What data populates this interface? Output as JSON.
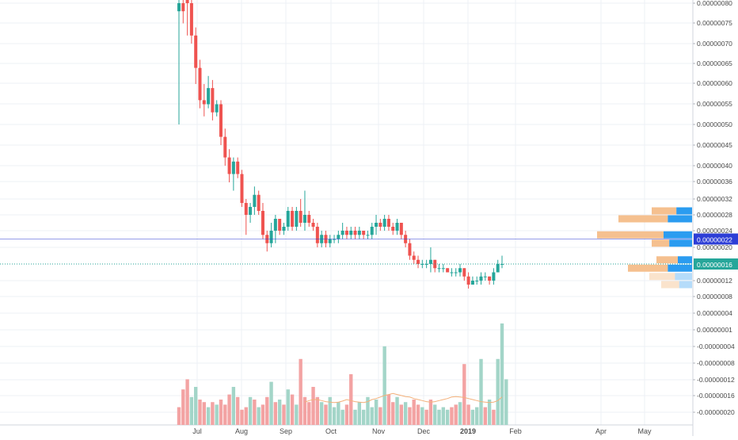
{
  "chart_data": {
    "type": "candlestick",
    "price_axis": {
      "ticks": [
        {
          "value": 8e-07,
          "label": "0.00000080"
        },
        {
          "value": 7.5e-07,
          "label": "0.00000075"
        },
        {
          "value": 7e-07,
          "label": "0.00000070"
        },
        {
          "value": 6.5e-07,
          "label": "0.00000065"
        },
        {
          "value": 6e-07,
          "label": "0.00000060"
        },
        {
          "value": 5.5e-07,
          "label": "0.00000055"
        },
        {
          "value": 5e-07,
          "label": "0.00000050"
        },
        {
          "value": 4.5e-07,
          "label": "0.00000045"
        },
        {
          "value": 4e-07,
          "label": "0.00000040"
        },
        {
          "value": 3.6e-07,
          "label": "0.00000036"
        },
        {
          "value": 3.2e-07,
          "label": "0.00000032"
        },
        {
          "value": 2.8e-07,
          "label": "0.00000028"
        },
        {
          "value": 2.4e-07,
          "label": "0.00000024"
        },
        {
          "value": 2e-07,
          "label": "0.00000020"
        },
        {
          "value": 1.2e-07,
          "label": "0.00000012"
        },
        {
          "value": 8e-08,
          "label": "0.00000008"
        },
        {
          "value": 4e-08,
          "label": "0.00000004"
        },
        {
          "value": 1e-08,
          "label": "0.00000001"
        },
        {
          "value": -4e-08,
          "label": "-0.00000004"
        },
        {
          "value": -8e-08,
          "label": "-0.00000008"
        },
        {
          "value": -1.2e-07,
          "label": "-0.00000012"
        },
        {
          "value": -1.6e-07,
          "label": "-0.00000016"
        },
        {
          "value": -2e-07,
          "label": "-0.00000020"
        }
      ]
    },
    "time_axis": [
      "Jul",
      "Aug",
      "Sep",
      "Oct",
      "Nov",
      "Dec",
      "2019",
      "Feb",
      "Apr",
      "May"
    ],
    "candles": [
      {
        "o": 7.8e-07,
        "h": 8.2e-07,
        "l": 5e-07,
        "c": 8e-07
      },
      {
        "o": 8e-07,
        "h": 8.2e-07,
        "l": 7.5e-07,
        "c": 7.8e-07
      },
      {
        "o": 8.2e-07,
        "h": 8.3e-07,
        "l": 7.2e-07,
        "c": 8e-07
      },
      {
        "o": 8e-07,
        "h": 8.2e-07,
        "l": 7e-07,
        "c": 7.2e-07
      },
      {
        "o": 7.2e-07,
        "h": 7.4e-07,
        "l": 6e-07,
        "c": 6.4e-07
      },
      {
        "o": 6.4e-07,
        "h": 6.6e-07,
        "l": 5.4e-07,
        "c": 5.6e-07
      },
      {
        "o": 5.6e-07,
        "h": 6e-07,
        "l": 5.2e-07,
        "c": 5.5e-07
      },
      {
        "o": 5.5e-07,
        "h": 6.2e-07,
        "l": 5.4e-07,
        "c": 5.9e-07
      },
      {
        "o": 5.9e-07,
        "h": 6.1e-07,
        "l": 5.1e-07,
        "c": 5.3e-07
      },
      {
        "o": 5.3e-07,
        "h": 5.6e-07,
        "l": 5.2e-07,
        "c": 5.5e-07
      },
      {
        "o": 5.5e-07,
        "h": 5.6e-07,
        "l": 4.5e-07,
        "c": 4.7e-07
      },
      {
        "o": 4.7e-07,
        "h": 4.9e-07,
        "l": 4e-07,
        "c": 4.2e-07
      },
      {
        "o": 4.2e-07,
        "h": 4.4e-07,
        "l": 3.6e-07,
        "c": 3.8e-07
      },
      {
        "o": 3.8e-07,
        "h": 4.2e-07,
        "l": 3.4e-07,
        "c": 4.1e-07
      },
      {
        "o": 4.1e-07,
        "h": 4.2e-07,
        "l": 3.7e-07,
        "c": 3.8e-07
      },
      {
        "o": 3.8e-07,
        "h": 3.9e-07,
        "l": 3e-07,
        "c": 3.1e-07
      },
      {
        "o": 3.1e-07,
        "h": 3.2e-07,
        "l": 2.3e-07,
        "c": 2.8e-07
      },
      {
        "o": 2.8e-07,
        "h": 3.1e-07,
        "l": 2.6e-07,
        "c": 3e-07
      },
      {
        "o": 3e-07,
        "h": 3.5e-07,
        "l": 2.8e-07,
        "c": 3.3e-07
      },
      {
        "o": 3.3e-07,
        "h": 3.4e-07,
        "l": 2.8e-07,
        "c": 2.9e-07
      },
      {
        "o": 2.9e-07,
        "h": 3.1e-07,
        "l": 2.2e-07,
        "c": 2.3e-07
      },
      {
        "o": 2.3e-07,
        "h": 2.4e-07,
        "l": 1.9e-07,
        "c": 2.1e-07
      },
      {
        "o": 2.1e-07,
        "h": 2.6e-07,
        "l": 2e-07,
        "c": 2.4e-07
      },
      {
        "o": 2.4e-07,
        "h": 2.8e-07,
        "l": 2.1e-07,
        "c": 2.7e-07
      },
      {
        "o": 2.7e-07,
        "h": 2.7e-07,
        "l": 2.3e-07,
        "c": 2.4e-07
      },
      {
        "o": 2.4e-07,
        "h": 2.6e-07,
        "l": 2.3e-07,
        "c": 2.5e-07
      },
      {
        "o": 2.5e-07,
        "h": 3e-07,
        "l": 2.4e-07,
        "c": 2.9e-07
      },
      {
        "o": 2.9e-07,
        "h": 3e-07,
        "l": 2.4e-07,
        "c": 2.5e-07
      },
      {
        "o": 2.5e-07,
        "h": 3e-07,
        "l": 2.4e-07,
        "c": 2.9e-07
      },
      {
        "o": 2.9e-07,
        "h": 3.2e-07,
        "l": 2.5e-07,
        "c": 2.6e-07
      },
      {
        "o": 2.6e-07,
        "h": 3.4e-07,
        "l": 2.4e-07,
        "c": 2.8e-07
      },
      {
        "o": 2.8e-07,
        "h": 2.9e-07,
        "l": 2.5e-07,
        "c": 2.6e-07
      },
      {
        "o": 2.6e-07,
        "h": 2.7e-07,
        "l": 2.4e-07,
        "c": 2.5e-07
      },
      {
        "o": 2.5e-07,
        "h": 2.6e-07,
        "l": 2e-07,
        "c": 2.1e-07
      },
      {
        "o": 2.1e-07,
        "h": 2.4e-07,
        "l": 2e-07,
        "c": 2.3e-07
      },
      {
        "o": 2.3e-07,
        "h": 2.4e-07,
        "l": 2e-07,
        "c": 2.1e-07
      },
      {
        "o": 2.1e-07,
        "h": 2.3e-07,
        "l": 2e-07,
        "c": 2.2e-07
      },
      {
        "o": 2.2e-07,
        "h": 2.3e-07,
        "l": 2.1e-07,
        "c": 2.2e-07
      },
      {
        "o": 2.2e-07,
        "h": 2.4e-07,
        "l": 2.1e-07,
        "c": 2.3e-07
      },
      {
        "o": 2.3e-07,
        "h": 2.6e-07,
        "l": 2.2e-07,
        "c": 2.4e-07
      },
      {
        "o": 2.4e-07,
        "h": 2.5e-07,
        "l": 2.2e-07,
        "c": 2.3e-07
      },
      {
        "o": 2.3e-07,
        "h": 2.5e-07,
        "l": 2.2e-07,
        "c": 2.4e-07
      },
      {
        "o": 2.4e-07,
        "h": 2.5e-07,
        "l": 2.2e-07,
        "c": 2.3e-07
      },
      {
        "o": 2.3e-07,
        "h": 2.5e-07,
        "l": 2.2e-07,
        "c": 2.4e-07
      },
      {
        "o": 2.4e-07,
        "h": 2.4e-07,
        "l": 2.2e-07,
        "c": 2.3e-07
      },
      {
        "o": 2.3e-07,
        "h": 2.4e-07,
        "l": 2.2e-07,
        "c": 2.3e-07
      },
      {
        "o": 2.3e-07,
        "h": 2.6e-07,
        "l": 2.2e-07,
        "c": 2.5e-07
      },
      {
        "o": 2.5e-07,
        "h": 2.8e-07,
        "l": 2.3e-07,
        "c": 2.6e-07
      },
      {
        "o": 2.6e-07,
        "h": 2.7e-07,
        "l": 2.4e-07,
        "c": 2.5e-07
      },
      {
        "o": 2.5e-07,
        "h": 2.8e-07,
        "l": 2.4e-07,
        "c": 2.7e-07
      },
      {
        "o": 2.7e-07,
        "h": 2.8e-07,
        "l": 2.4e-07,
        "c": 2.5e-07
      },
      {
        "o": 2.5e-07,
        "h": 2.6e-07,
        "l": 2.3e-07,
        "c": 2.4e-07
      },
      {
        "o": 2.4e-07,
        "h": 2.7e-07,
        "l": 2.3e-07,
        "c": 2.6e-07
      },
      {
        "o": 2.6e-07,
        "h": 2.6e-07,
        "l": 2.2e-07,
        "c": 2.3e-07
      },
      {
        "o": 2.3e-07,
        "h": 2.4e-07,
        "l": 2e-07,
        "c": 2.1e-07
      },
      {
        "o": 2.1e-07,
        "h": 2.2e-07,
        "l": 1.7e-07,
        "c": 1.8e-07
      },
      {
        "o": 1.8e-07,
        "h": 1.9e-07,
        "l": 1.6e-07,
        "c": 1.7e-07
      },
      {
        "o": 1.7e-07,
        "h": 1.8e-07,
        "l": 1.5e-07,
        "c": 1.6e-07
      },
      {
        "o": 1.6e-07,
        "h": 1.7e-07,
        "l": 1.5e-07,
        "c": 1.6e-07
      },
      {
        "o": 1.6e-07,
        "h": 1.7e-07,
        "l": 1.5e-07,
        "c": 1.6e-07
      },
      {
        "o": 1.6e-07,
        "h": 2e-07,
        "l": 1.4e-07,
        "c": 1.7e-07
      },
      {
        "o": 1.7e-07,
        "h": 1.7e-07,
        "l": 1.4e-07,
        "c": 1.5e-07
      },
      {
        "o": 1.5e-07,
        "h": 1.6e-07,
        "l": 1.4e-07,
        "c": 1.5e-07
      },
      {
        "o": 1.5e-07,
        "h": 1.6e-07,
        "l": 1.4e-07,
        "c": 1.5e-07
      },
      {
        "o": 1.5e-07,
        "h": 1.5e-07,
        "l": 1.4e-07,
        "c": 1.4e-07
      },
      {
        "o": 1.4e-07,
        "h": 1.5e-07,
        "l": 1.3e-07,
        "c": 1.4e-07
      },
      {
        "o": 1.4e-07,
        "h": 1.5e-07,
        "l": 1.3e-07,
        "c": 1.4e-07
      },
      {
        "o": 1.4e-07,
        "h": 1.6e-07,
        "l": 1.3e-07,
        "c": 1.5e-07
      },
      {
        "o": 1.5e-07,
        "h": 1.5e-07,
        "l": 1.2e-07,
        "c": 1.3e-07
      },
      {
        "o": 1.3e-07,
        "h": 1.4e-07,
        "l": 1e-07,
        "c": 1.1e-07
      },
      {
        "o": 1.1e-07,
        "h": 1.3e-07,
        "l": 1.1e-07,
        "c": 1.2e-07
      },
      {
        "o": 1.2e-07,
        "h": 1.3e-07,
        "l": 1.1e-07,
        "c": 1.2e-07
      },
      {
        "o": 1.2e-07,
        "h": 1.4e-07,
        "l": 1.1e-07,
        "c": 1.3e-07
      },
      {
        "o": 1.3e-07,
        "h": 1.4e-07,
        "l": 1.2e-07,
        "c": 1.3e-07
      },
      {
        "o": 1.3e-07,
        "h": 1.3e-07,
        "l": 1.1e-07,
        "c": 1.2e-07
      },
      {
        "o": 1.2e-07,
        "h": 1.5e-07,
        "l": 1.1e-07,
        "c": 1.4e-07
      },
      {
        "o": 1.4e-07,
        "h": 1.7e-07,
        "l": 1.4e-07,
        "c": 1.6e-07
      },
      {
        "o": 1.6e-07,
        "h": 1.8e-07,
        "l": 1.5e-07,
        "c": 1.6e-07
      }
    ],
    "volume": [
      {
        "v": 0.35,
        "up": false
      },
      {
        "v": 0.7,
        "up": false
      },
      {
        "v": 0.9,
        "up": false
      },
      {
        "v": 0.55,
        "up": true
      },
      {
        "v": 0.75,
        "up": true
      },
      {
        "v": 0.5,
        "up": false
      },
      {
        "v": 0.45,
        "up": false
      },
      {
        "v": 0.35,
        "up": true
      },
      {
        "v": 0.45,
        "up": false
      },
      {
        "v": 0.4,
        "up": true
      },
      {
        "v": 0.5,
        "up": false
      },
      {
        "v": 0.4,
        "up": false
      },
      {
        "v": 0.6,
        "up": false
      },
      {
        "v": 0.75,
        "up": true
      },
      {
        "v": 0.55,
        "up": false
      },
      {
        "v": 0.3,
        "up": false
      },
      {
        "v": 0.35,
        "up": false
      },
      {
        "v": 0.55,
        "up": true
      },
      {
        "v": 0.5,
        "up": false
      },
      {
        "v": 0.35,
        "up": true
      },
      {
        "v": 0.4,
        "up": false
      },
      {
        "v": 0.55,
        "up": false
      },
      {
        "v": 0.85,
        "up": true
      },
      {
        "v": 0.45,
        "up": false
      },
      {
        "v": 0.5,
        "up": true
      },
      {
        "v": 0.4,
        "up": false
      },
      {
        "v": 0.7,
        "up": true
      },
      {
        "v": 0.6,
        "up": false
      },
      {
        "v": 0.4,
        "up": true
      },
      {
        "v": 1.3,
        "up": false
      },
      {
        "v": 0.55,
        "up": false
      },
      {
        "v": 0.45,
        "up": false
      },
      {
        "v": 0.75,
        "up": false
      },
      {
        "v": 0.55,
        "up": false
      },
      {
        "v": 0.45,
        "up": true
      },
      {
        "v": 0.4,
        "up": false
      },
      {
        "v": 0.55,
        "up": true
      },
      {
        "v": 0.35,
        "up": true
      },
      {
        "v": 0.45,
        "up": true
      },
      {
        "v": 0.3,
        "up": true
      },
      {
        "v": 0.4,
        "up": false
      },
      {
        "v": 1.0,
        "up": false
      },
      {
        "v": 0.3,
        "up": true
      },
      {
        "v": 0.45,
        "up": true
      },
      {
        "v": 0.3,
        "up": true
      },
      {
        "v": 0.55,
        "up": true
      },
      {
        "v": 0.35,
        "up": true
      },
      {
        "v": 0.5,
        "up": true
      },
      {
        "v": 0.35,
        "up": false
      },
      {
        "v": 1.55,
        "up": true
      },
      {
        "v": 0.6,
        "up": false
      },
      {
        "v": 0.45,
        "up": false
      },
      {
        "v": 0.55,
        "up": true
      },
      {
        "v": 0.4,
        "up": false
      },
      {
        "v": 0.45,
        "up": true
      },
      {
        "v": 0.35,
        "up": false
      },
      {
        "v": 0.5,
        "up": false
      },
      {
        "v": 0.4,
        "up": false
      },
      {
        "v": 0.35,
        "up": true
      },
      {
        "v": 0.3,
        "up": false
      },
      {
        "v": 0.5,
        "up": false
      },
      {
        "v": 0.4,
        "up": true
      },
      {
        "v": 0.3,
        "up": true
      },
      {
        "v": 0.35,
        "up": true
      },
      {
        "v": 0.3,
        "up": true
      },
      {
        "v": 0.35,
        "up": false
      },
      {
        "v": 0.4,
        "up": false
      },
      {
        "v": 0.45,
        "up": true
      },
      {
        "v": 1.2,
        "up": false
      },
      {
        "v": 0.4,
        "up": false
      },
      {
        "v": 0.3,
        "up": true
      },
      {
        "v": 0.35,
        "up": true
      },
      {
        "v": 1.3,
        "up": true
      },
      {
        "v": 0.35,
        "up": false
      },
      {
        "v": 0.5,
        "up": true
      },
      {
        "v": 0.3,
        "up": false
      },
      {
        "v": 1.3,
        "up": true
      },
      {
        "v": 2.0,
        "up": true
      },
      {
        "v": 0.9,
        "up": true
      }
    ],
    "volume_ma": [
      0.45,
      0.48,
      0.5,
      0.5,
      0.48,
      0.46,
      0.45,
      0.44,
      0.45,
      0.47,
      0.5,
      0.48,
      0.46,
      0.45,
      0.44,
      0.46,
      0.5,
      0.52,
      0.55,
      0.58,
      0.6,
      0.62,
      0.6,
      0.58,
      0.56,
      0.55,
      0.52,
      0.5,
      0.48,
      0.46,
      0.45,
      0.46,
      0.48,
      0.5,
      0.52,
      0.55,
      0.56,
      0.55,
      0.54,
      0.52,
      0.5,
      0.48,
      0.46,
      0.45,
      0.44,
      0.45,
      0.48,
      0.55
    ],
    "volume_profile": [
      {
        "price": 2.9e-07,
        "down": 0.3,
        "up": 0.55
      },
      {
        "price": 2.7e-07,
        "down": 0.7,
        "up": 0.85
      },
      {
        "price": 2.3e-07,
        "down": 1.0,
        "up": 1.0
      },
      {
        "price": 2.1e-07,
        "down": 0.05,
        "up": 0.8
      },
      {
        "price": 1.7e-07,
        "down": 0.25,
        "up": 0.5
      },
      {
        "price": 1.5e-07,
        "down": 0.5,
        "up": 0.85
      },
      {
        "price": 1.3e-07,
        "down": 0.3,
        "up": 0.6
      },
      {
        "price": 1.1e-07,
        "down": 0.2,
        "up": 0.45
      }
    ],
    "price_lines": [
      {
        "value": 2.2e-07,
        "label": "0.00000022",
        "color": "#2d3ed6",
        "style": "solid"
      },
      {
        "value": 1.6e-07,
        "label": "0.00000016",
        "color": "#26a69a",
        "style": "dotted"
      }
    ],
    "colors": {
      "up": "#26a69a",
      "down": "#ef5350",
      "volume_up": "#a3d5c8",
      "volume_down": "#f3a3a3",
      "ma": "#f3b07a",
      "profile_up": "#2b9cf0",
      "profile_down": "#f5c08f",
      "grid": "#eef1f5"
    }
  }
}
